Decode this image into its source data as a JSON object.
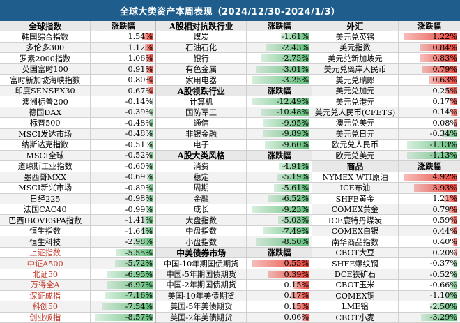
{
  "title": "全球大类资产本周表现（2024/12/30-2024/1/3）",
  "colors": {
    "pos_bar": "#e8443a",
    "neg_bar": "#63be7b",
    "header_bg": "#1f5e8c"
  },
  "columns": [
    {
      "sections": [
        {
          "header": [
            "全球指数",
            "涨跌幅"
          ],
          "rows": [
            {
              "name": "韩国综合指数",
              "value": "1.54%",
              "pct": 1.54
            },
            {
              "name": "多伦多300",
              "value": "1.12%",
              "pct": 1.12
            },
            {
              "name": "罗素2000指数",
              "value": "1.06%",
              "pct": 1.06
            },
            {
              "name": "英国富时100",
              "value": "0.91%",
              "pct": 0.91
            },
            {
              "name": "富时新加坡海峡指数",
              "value": "0.80%",
              "pct": 0.8
            },
            {
              "name": "印度SENSEX30",
              "value": "0.67%",
              "pct": 0.67
            },
            {
              "name": "澳洲标普200",
              "value": "-0.14%",
              "pct": -0.14
            },
            {
              "name": "德国DAX",
              "value": "-0.39%",
              "pct": -0.39
            },
            {
              "name": "标普500",
              "value": "-0.48%",
              "pct": -0.48
            },
            {
              "name": "MSCI发达市场",
              "value": "-0.48%",
              "pct": -0.48
            },
            {
              "name": "纳斯达克指数",
              "value": "-0.51%",
              "pct": -0.51
            },
            {
              "name": "MSCI全球",
              "value": "-0.52%",
              "pct": -0.52
            },
            {
              "name": "道琼斯工业指数",
              "value": "-0.60%",
              "pct": -0.6
            },
            {
              "name": "墨西哥MXX",
              "value": "-0.69%",
              "pct": -0.69
            },
            {
              "name": "MSCI新兴市场",
              "value": "-0.89%",
              "pct": -0.89
            },
            {
              "name": "日经225",
              "value": "-0.98%",
              "pct": -0.98
            },
            {
              "name": "法国CAC40",
              "value": "-0.99%",
              "pct": -0.99
            },
            {
              "name": "巴西IBOVESPA指数",
              "value": "-1.41%",
              "pct": -1.41
            },
            {
              "name": "恒生指数",
              "value": "-1.64%",
              "pct": -1.64
            },
            {
              "name": "恒生科技",
              "value": "-2.98%",
              "pct": -2.98
            },
            {
              "name": "上证指数",
              "value": "-5.55%",
              "pct": -5.55,
              "red": true
            },
            {
              "name": "中证A500",
              "value": "-5.72%",
              "pct": -5.72,
              "red": true
            },
            {
              "name": "北证50",
              "value": "-6.95%",
              "pct": -6.95,
              "red": true
            },
            {
              "name": "万得全A",
              "value": "-6.97%",
              "pct": -6.97,
              "red": true
            },
            {
              "name": "深证成指",
              "value": "-7.16%",
              "pct": -7.16,
              "red": true
            },
            {
              "name": "科创50",
              "value": "-7.54%",
              "pct": -7.54,
              "red": true
            },
            {
              "name": "创业板指",
              "value": "-8.57%",
              "pct": -8.57,
              "red": true
            }
          ]
        }
      ]
    },
    {
      "sections": [
        {
          "header": [
            "A股相对抗跌行业",
            "涨跌幅"
          ],
          "rows": [
            {
              "name": "煤炭",
              "value": "-1.61%",
              "pct": -1.61
            },
            {
              "name": "石油石化",
              "value": "-2.43%",
              "pct": -2.43
            },
            {
              "name": "银行",
              "value": "-2.75%",
              "pct": -2.75
            },
            {
              "name": "有色金属",
              "value": "-3.01%",
              "pct": -3.01
            },
            {
              "name": "家用电器",
              "value": "-3.25%",
              "pct": -3.25
            }
          ]
        },
        {
          "header": [
            "A股领跌行业",
            "涨跌幅"
          ],
          "rows": [
            {
              "name": "计算机",
              "value": "-12.49%",
              "pct": -12.49
            },
            {
              "name": "国防军工",
              "value": "-10.48%",
              "pct": -10.48
            },
            {
              "name": "通信",
              "value": "-9.95%",
              "pct": -9.95
            },
            {
              "name": "非银金融",
              "value": "-9.89%",
              "pct": -9.89
            },
            {
              "name": "电子",
              "value": "-9.60%",
              "pct": -9.6
            }
          ]
        },
        {
          "header": [
            "A股大类风格",
            "涨跌幅"
          ],
          "rows": [
            {
              "name": "消费",
              "value": "-4.91%",
              "pct": -4.91
            },
            {
              "name": "稳定",
              "value": "-5.19%",
              "pct": -5.19
            },
            {
              "name": "周期",
              "value": "-5.61%",
              "pct": -5.61
            },
            {
              "name": "金融",
              "value": "-6.52%",
              "pct": -6.52
            },
            {
              "name": "成长",
              "value": "-9.23%",
              "pct": -9.23
            },
            {
              "name": "大盘指数",
              "value": "-5.03%",
              "pct": -5.03
            },
            {
              "name": "中盘指数",
              "value": "-7.49%",
              "pct": -7.49
            },
            {
              "name": "小盘指数",
              "value": "-8.50%",
              "pct": -8.5
            }
          ]
        },
        {
          "header": [
            "中美债券市场",
            "涨跌幅"
          ],
          "rows": [
            {
              "name": "中国-10年期国债期货",
              "value": "0.55%",
              "pct": 0.55
            },
            {
              "name": "中国-5年期国债期货",
              "value": "0.39%",
              "pct": 0.39
            },
            {
              "name": "中国-2年期国债期货",
              "value": "0.15%",
              "pct": 0.15
            },
            {
              "name": "美国-10年美债期货",
              "value": "0.17%",
              "pct": 0.17
            },
            {
              "name": "美国-5年美债期货",
              "value": "0.15%",
              "pct": 0.15
            },
            {
              "name": "美国-2年美债期货",
              "value": "0.06%",
              "pct": 0.06
            }
          ]
        }
      ]
    },
    {
      "sections": [
        {
          "header": [
            "外汇",
            "涨跌幅"
          ],
          "rows": [
            {
              "name": "美元兑英镑",
              "value": "1.22%",
              "pct": 1.22
            },
            {
              "name": "美元指数",
              "value": "0.84%",
              "pct": 0.84
            },
            {
              "name": "美元兑新加坡元",
              "value": "0.83%",
              "pct": 0.83
            },
            {
              "name": "美元兑离岸人民币",
              "value": "0.79%",
              "pct": 0.79
            },
            {
              "name": "美元兑瑞郎",
              "value": "0.63%",
              "pct": 0.63
            },
            {
              "name": "美元兑加元",
              "value": "0.25%",
              "pct": 0.25
            },
            {
              "name": "美元兑港元",
              "value": "0.17%",
              "pct": 0.17
            },
            {
              "name": "美元兑人民币(CFETS)",
              "value": "0.14%",
              "pct": 0.14
            },
            {
              "name": "澳元兑美元",
              "value": "0.08%",
              "pct": 0.08
            },
            {
              "name": "美元兑日元",
              "value": "-0.34%",
              "pct": -0.34
            },
            {
              "name": "欧元兑人民币",
              "value": "-1.13%",
              "pct": -1.13
            },
            {
              "name": "欧元兑美元",
              "value": "-1.13%",
              "pct": -1.13
            }
          ]
        },
        {
          "header": [
            "商品",
            "涨跌幅"
          ],
          "rows": [
            {
              "name": "NYMEX WTI原油",
              "value": "4.92%",
              "pct": 4.92
            },
            {
              "name": "ICE布油",
              "value": "3.93%",
              "pct": 3.93
            },
            {
              "name": "SHFE黄金",
              "value": "1.21%",
              "pct": 1.21
            },
            {
              "name": "COMEX黄金",
              "value": "0.79%",
              "pct": 0.79
            },
            {
              "name": "ICE鹿特丹煤炭",
              "value": "0.59%",
              "pct": 0.59
            },
            {
              "name": "COMEX白银",
              "value": "0.44%",
              "pct": 0.44
            },
            {
              "name": "南华商品指数",
              "value": "0.40%",
              "pct": 0.4
            },
            {
              "name": "CBOT大豆",
              "value": "0.20%",
              "pct": 0.2
            },
            {
              "name": "SHFE螺纹钢",
              "value": "-0.37%",
              "pct": -0.37
            },
            {
              "name": "DCE铁矿石",
              "value": "-0.52%",
              "pct": -0.52
            },
            {
              "name": "CBOT玉米",
              "value": "-0.66%",
              "pct": -0.66
            },
            {
              "name": "COMEX铜",
              "value": "-1.10%",
              "pct": -1.1
            },
            {
              "name": "LME铝",
              "value": "-2.50%",
              "pct": -2.5
            },
            {
              "name": "CBOT小麦",
              "value": "-3.29%",
              "pct": -3.29
            }
          ]
        }
      ]
    }
  ]
}
